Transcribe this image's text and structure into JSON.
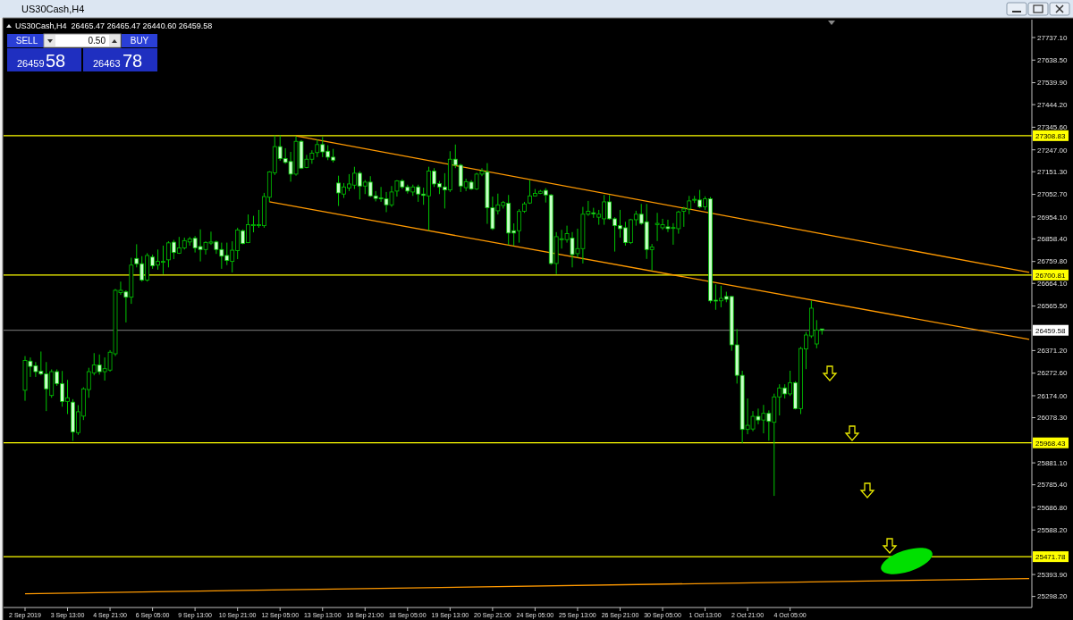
{
  "chart_data": {
    "type": "candlestick",
    "title": "US30Cash,H4",
    "subtitle": "US30Cash,H4  26465.47 26465.47 26440.60 26459.58",
    "annotations": [
      "SELL",
      "0.50",
      "BUY",
      "26459",
      "58",
      "26463",
      "78"
    ],
    "categories": [
      "2 Sep 2019",
      null,
      null,
      null,
      null,
      null,
      null,
      null,
      "3 Sep 13:00",
      null,
      null,
      null,
      null,
      null,
      null,
      null,
      "4 Sep 21:00",
      null,
      null,
      null,
      null,
      null,
      null,
      null,
      "6 Sep 05:00",
      null,
      null,
      null,
      null,
      null,
      null,
      null,
      "9 Sep 13:00",
      null,
      null,
      null,
      null,
      null,
      null,
      null,
      "10 Sep 21:00",
      null,
      null,
      null,
      null,
      null,
      null,
      null,
      "12 Sep 05:00",
      null,
      null,
      null,
      null,
      null,
      null,
      null,
      "13 Sep 13:00",
      null,
      null,
      null,
      null,
      null,
      null,
      null,
      "16 Sep 21:00",
      null,
      null,
      null,
      null,
      null,
      null,
      null,
      "18 Sep 05:00",
      null,
      null,
      null,
      null,
      null,
      null,
      null,
      "19 Sep 13:00",
      null,
      null,
      null,
      null,
      null,
      null,
      null,
      "20 Sep 21:00",
      null,
      null,
      null,
      null,
      null,
      null,
      null,
      "24 Sep 05:00",
      null,
      null,
      null,
      null,
      null,
      null,
      null,
      "25 Sep 13:00",
      null,
      null,
      null,
      null,
      null,
      null,
      null,
      "26 Sep 21:00",
      null,
      null,
      null,
      null,
      null,
      null,
      null,
      "30 Sep 05:00",
      null,
      null,
      null,
      null,
      null,
      null,
      null,
      "1 Oct 13:00",
      null,
      null,
      null,
      null,
      null,
      null,
      null,
      "2 Oct 21:00",
      null,
      null,
      null,
      null,
      null,
      null,
      null,
      "4 Oct 05:00",
      null,
      null,
      null,
      null,
      null,
      null,
      null,
      null,
      null,
      null,
      null,
      null,
      null,
      null,
      null,
      null,
      null,
      null,
      null,
      null,
      null,
      null,
      null,
      null,
      null,
      null,
      null,
      null,
      null,
      null,
      null,
      null,
      null,
      null,
      null,
      null,
      null,
      null,
      null,
      null,
      null,
      null,
      null,
      null,
      null
    ],
    "ohlc": [
      [
        26198,
        26347,
        26152,
        26328
      ],
      [
        26325,
        26341,
        26256,
        26302
      ],
      [
        26305,
        26321,
        26256,
        26279
      ],
      [
        26281,
        26367,
        26263,
        26269
      ],
      [
        26269,
        26321,
        26107,
        26204
      ],
      [
        26175,
        26289,
        26165,
        26279
      ],
      [
        26279,
        26289,
        26217,
        26227
      ],
      [
        26227,
        26282,
        26126,
        26149
      ],
      [
        26149,
        26243,
        26094,
        26165
      ],
      [
        26146,
        26159,
        25977,
        26016
      ],
      [
        26013,
        26133,
        26003,
        26104
      ],
      [
        26085,
        26211,
        26068,
        26204
      ],
      [
        26201,
        26296,
        26165,
        26279
      ],
      [
        26273,
        26360,
        26263,
        26308
      ],
      [
        26308,
        26354,
        26266,
        26279
      ],
      [
        26279,
        26341,
        26240,
        26292
      ],
      [
        26286,
        26373,
        26279,
        26364
      ],
      [
        26357,
        26640,
        26347,
        26634
      ],
      [
        26624,
        26672,
        26614,
        26634
      ],
      [
        26627,
        26634,
        26494,
        26604
      ],
      [
        26604,
        26776,
        26575,
        26744
      ],
      [
        26773,
        26835,
        26734,
        26750
      ],
      [
        26750,
        26783,
        26672,
        26679
      ],
      [
        26679,
        26796,
        26672,
        26786
      ],
      [
        26779,
        26790,
        26728,
        26741
      ],
      [
        26744,
        26812,
        26724,
        26760
      ],
      [
        26757,
        26829,
        26705,
        26760
      ],
      [
        26767,
        26848,
        26734,
        26841
      ],
      [
        26844,
        26854,
        26770,
        26799
      ],
      [
        26796,
        26867,
        26793,
        26819
      ],
      [
        26819,
        26864,
        26812,
        26851
      ],
      [
        26845,
        26867,
        26829,
        26858
      ],
      [
        26861,
        26871,
        26799,
        26819
      ],
      [
        26825,
        26900,
        26760,
        26812
      ],
      [
        26812,
        26848,
        26790,
        26843
      ],
      [
        26840,
        26890,
        26832,
        26845
      ],
      [
        26845,
        26851,
        26793,
        26812
      ],
      [
        26812,
        26842,
        26728,
        26783
      ],
      [
        26786,
        26842,
        26744,
        26764
      ],
      [
        26760,
        26848,
        26712,
        26809
      ],
      [
        26807,
        26907,
        26770,
        26897
      ],
      [
        26894,
        26900,
        26835,
        26838
      ],
      [
        26842,
        26965,
        26840,
        26920
      ],
      [
        26916,
        26959,
        26887,
        26920
      ],
      [
        26916,
        26985,
        26907,
        26920
      ],
      [
        26916,
        27059,
        26907,
        27043
      ],
      [
        27040,
        27154,
        27020,
        27150
      ],
      [
        27147,
        27310,
        27137,
        27261
      ],
      [
        27261,
        27310,
        27199,
        27209
      ],
      [
        27209,
        27254,
        27186,
        27192
      ],
      [
        27196,
        27238,
        27108,
        27141
      ],
      [
        27141,
        27306,
        27134,
        27284
      ],
      [
        27284,
        27290,
        27163,
        27167
      ],
      [
        27170,
        27225,
        27167,
        27206
      ],
      [
        27206,
        27245,
        27186,
        27232
      ],
      [
        27235,
        27293,
        27215,
        27270
      ],
      [
        27270,
        27303,
        27215,
        27238
      ],
      [
        27241,
        27267,
        27202,
        27215
      ],
      [
        27215,
        27251,
        27192,
        27202
      ],
      [
        27102,
        27134,
        27002,
        27059
      ],
      [
        27054,
        27102,
        27037,
        27085
      ],
      [
        27080,
        27141,
        27067,
        27098
      ],
      [
        27093,
        27173,
        27076,
        27145
      ],
      [
        27145,
        27154,
        27030,
        27089
      ],
      [
        27089,
        27115,
        27054,
        27106
      ],
      [
        27106,
        27132,
        27041,
        27046
      ],
      [
        27046,
        27067,
        27022,
        27035
      ],
      [
        27037,
        27085,
        27020,
        27034
      ],
      [
        27033,
        27063,
        26975,
        27007
      ],
      [
        27007,
        27089,
        26998,
        27063
      ],
      [
        27067,
        27115,
        27043,
        27111
      ],
      [
        27111,
        27119,
        27076,
        27085
      ],
      [
        27085,
        27095,
        27056,
        27067
      ],
      [
        27063,
        27095,
        27046,
        27085
      ],
      [
        27085,
        27095,
        27020,
        27054
      ],
      [
        27054,
        27082,
        27007,
        27048
      ],
      [
        27046,
        27173,
        26894,
        27154
      ],
      [
        27154,
        27167,
        27085,
        27098
      ],
      [
        27100,
        27111,
        27054,
        27085
      ],
      [
        27085,
        27145,
        26991,
        27072
      ],
      [
        27072,
        27241,
        27063,
        27206
      ],
      [
        27206,
        27270,
        27167,
        27180
      ],
      [
        27180,
        27186,
        27063,
        27089
      ],
      [
        27082,
        27121,
        27067,
        27108
      ],
      [
        27106,
        27115,
        27072,
        27076
      ],
      [
        27076,
        27147,
        27072,
        27141
      ],
      [
        27141,
        27167,
        27132,
        27154
      ],
      [
        27150,
        27189,
        26924,
        26994
      ],
      [
        26994,
        27043,
        26897,
        26903
      ],
      [
        26981,
        27056,
        26965,
        27007
      ],
      [
        27004,
        27024,
        26991,
        27017
      ],
      [
        27014,
        27050,
        26832,
        26884
      ],
      [
        26894,
        26926,
        26829,
        26884
      ],
      [
        26894,
        26988,
        26842,
        26978
      ],
      [
        26979,
        27020,
        26972,
        27011
      ],
      [
        27015,
        27115,
        27011,
        27046
      ],
      [
        27046,
        27076,
        27043,
        27057
      ],
      [
        27057,
        27072,
        27054,
        27066
      ],
      [
        27070,
        27080,
        27017,
        27050
      ],
      [
        27050,
        27054,
        26745,
        26751
      ],
      [
        26751,
        26888,
        26705,
        26868
      ],
      [
        26856,
        26898,
        26816,
        26859
      ],
      [
        26855,
        26916,
        26842,
        26881
      ],
      [
        26862,
        26888,
        26734,
        26790
      ],
      [
        26794,
        26903,
        26777,
        26816
      ],
      [
        26816,
        26998,
        26751,
        26966
      ],
      [
        26966,
        27024,
        26959,
        26979
      ],
      [
        26972,
        26994,
        26950,
        26968
      ],
      [
        26953,
        26985,
        26920,
        26966
      ],
      [
        26946,
        27050,
        26920,
        27020
      ],
      [
        27020,
        27050,
        26942,
        26946
      ],
      [
        26946,
        26953,
        26803,
        26916
      ],
      [
        26916,
        26985,
        26864,
        26903
      ],
      [
        26907,
        26933,
        26829,
        26842
      ],
      [
        26842,
        26946,
        26836,
        26942
      ],
      [
        26942,
        26981,
        26916,
        26966
      ],
      [
        26966,
        27011,
        26920,
        26926
      ],
      [
        26933,
        27011,
        26771,
        26812
      ],
      [
        26812,
        26836,
        26721,
        26823
      ],
      [
        26921,
        26972,
        26849,
        26926
      ],
      [
        26907,
        26946,
        26898,
        26920
      ],
      [
        26911,
        26942,
        26888,
        26903
      ],
      [
        26906,
        26927,
        26833,
        26908
      ],
      [
        26903,
        26981,
        26881,
        26976
      ],
      [
        26979,
        26998,
        26911,
        26989
      ],
      [
        26989,
        27046,
        26966,
        27024
      ],
      [
        27028,
        27046,
        27015,
        27031
      ],
      [
        27028,
        27072,
        26992,
        26998
      ],
      [
        26998,
        27044,
        26985,
        27033
      ],
      [
        27033,
        27041,
        26578,
        26588
      ],
      [
        26591,
        26660,
        26549,
        26587
      ],
      [
        26588,
        26654,
        26560,
        26599
      ],
      [
        26607,
        26628,
        26582,
        26595
      ],
      [
        26607,
        26609,
        26370,
        26396
      ],
      [
        26396,
        26465,
        26227,
        26263
      ],
      [
        26263,
        26283,
        25967,
        26027
      ],
      [
        26027,
        26162,
        26006,
        26045
      ],
      [
        26029,
        26107,
        26019,
        26084
      ],
      [
        26084,
        26118,
        26049,
        26068
      ],
      [
        26068,
        26134,
        26010,
        26097
      ],
      [
        26097,
        26110,
        25978,
        26062
      ],
      [
        26058,
        26183,
        25737,
        26169
      ],
      [
        26169,
        26224,
        26088,
        26208
      ],
      [
        26208,
        26224,
        26162,
        26182
      ],
      [
        26182,
        26283,
        26173,
        26231
      ],
      [
        26231,
        26237,
        26114,
        26118
      ],
      [
        26118,
        26387,
        26094,
        26380
      ],
      [
        26378,
        26452,
        26290,
        26439
      ],
      [
        26435,
        26588,
        26426,
        26556
      ],
      [
        26400,
        26504,
        26381,
        26461
      ],
      [
        26465.47,
        26465.47,
        26440.6,
        26459.58
      ],
      null,
      null,
      null,
      null,
      null,
      null,
      null,
      null,
      null,
      null,
      null,
      null,
      null,
      null,
      null,
      null,
      null,
      null,
      null,
      null,
      null,
      null,
      null,
      null,
      null,
      null,
      null,
      null,
      null,
      null,
      null,
      null,
      null,
      null,
      null,
      null,
      null,
      null,
      null
    ],
    "series": [
      {
        "type": "line",
        "color": "#ff9900",
        "values": [
          null,
          null,
          null,
          null,
          null,
          null,
          null,
          null,
          null,
          null,
          null,
          null,
          null,
          null,
          null,
          null,
          null,
          null,
          null,
          null,
          null,
          null,
          null,
          null,
          null,
          null,
          null,
          null,
          null,
          null,
          null,
          null,
          null,
          null,
          null,
          null,
          null,
          null,
          null,
          null,
          null,
          null,
          null,
          null,
          null,
          null,
          null,
          null,
          null,
          null,
          null,
          27308,
          null,
          null,
          null,
          null,
          null,
          null,
          null,
          null,
          null,
          null,
          null,
          null,
          null,
          null,
          null,
          null,
          null,
          null,
          null,
          null,
          null,
          null,
          null,
          null,
          null,
          null,
          null,
          null,
          null,
          null,
          null,
          null,
          null,
          null,
          null,
          null,
          null,
          null,
          null,
          null,
          null,
          null,
          null,
          null,
          null,
          null,
          null,
          null,
          null,
          null,
          null,
          null,
          null,
          null,
          null,
          null,
          null,
          null,
          null,
          null,
          null,
          null,
          null,
          null,
          null,
          null,
          null,
          null,
          null,
          null,
          null,
          null,
          null,
          null,
          null,
          null,
          null,
          null,
          null,
          null,
          null,
          null,
          null,
          null,
          null,
          null,
          null,
          null,
          null,
          null,
          null,
          null,
          null,
          null,
          null,
          null,
          null,
          null,
          null,
          null,
          null,
          null,
          null,
          null,
          null,
          null,
          null,
          null,
          null,
          null,
          null,
          null,
          null,
          null,
          null,
          null,
          null,
          null,
          null,
          null,
          null,
          null,
          null,
          null,
          null,
          null,
          null,
          null,
          null,
          null,
          null,
          null,
          null,
          null,
          null,
          null,
          null,
          26712
        ]
      },
      {
        "type": "line",
        "color": "#ff9900",
        "values": [
          null,
          null,
          null,
          null,
          null,
          null,
          null,
          null,
          null,
          null,
          null,
          null,
          null,
          null,
          null,
          null,
          null,
          null,
          null,
          null,
          null,
          null,
          null,
          null,
          null,
          null,
          null,
          null,
          null,
          null,
          null,
          null,
          null,
          null,
          null,
          null,
          null,
          null,
          null,
          null,
          null,
          null,
          null,
          null,
          null,
          null,
          27020,
          null,
          null,
          null,
          null,
          null,
          null,
          null,
          null,
          null,
          null,
          null,
          null,
          null,
          null,
          null,
          null,
          null,
          null,
          null,
          null,
          null,
          null,
          null,
          null,
          null,
          null,
          null,
          null,
          null,
          null,
          null,
          null,
          null,
          null,
          null,
          null,
          null,
          null,
          null,
          null,
          null,
          null,
          null,
          null,
          null,
          null,
          null,
          null,
          null,
          null,
          null,
          null,
          null,
          null,
          null,
          null,
          null,
          null,
          null,
          null,
          null,
          null,
          null,
          null,
          null,
          null,
          null,
          null,
          null,
          null,
          null,
          null,
          null,
          null,
          null,
          null,
          null,
          null,
          null,
          null,
          null,
          null,
          null,
          null,
          null,
          null,
          null,
          null,
          null,
          null,
          null,
          null,
          null,
          null,
          null,
          null,
          null,
          null,
          null,
          null,
          null,
          null,
          null,
          null,
          null,
          null,
          null,
          null,
          null,
          null,
          null,
          null,
          null,
          null,
          null,
          null,
          null,
          null,
          null,
          null,
          null,
          null,
          null,
          null,
          null,
          null,
          null,
          null,
          null,
          null,
          null,
          null,
          null,
          null,
          null,
          null,
          null,
          null,
          null,
          null,
          null,
          null,
          26420
        ]
      },
      {
        "type": "line",
        "color": "#ff9900",
        "values": [
          25310,
          null,
          null,
          null,
          null,
          null,
          null,
          null,
          null,
          null,
          null,
          null,
          null,
          null,
          null,
          null,
          null,
          null,
          null,
          null,
          null,
          null,
          null,
          null,
          null,
          null,
          null,
          null,
          null,
          null,
          null,
          null,
          null,
          null,
          null,
          null,
          null,
          null,
          null,
          null,
          null,
          null,
          null,
          null,
          null,
          null,
          null,
          null,
          null,
          null,
          null,
          null,
          null,
          null,
          null,
          null,
          null,
          null,
          null,
          null,
          null,
          null,
          null,
          null,
          null,
          null,
          null,
          null,
          null,
          null,
          null,
          null,
          null,
          null,
          null,
          null,
          null,
          null,
          null,
          null,
          null,
          null,
          null,
          null,
          null,
          null,
          null,
          null,
          null,
          null,
          null,
          null,
          null,
          null,
          null,
          null,
          null,
          null,
          null,
          null,
          null,
          null,
          null,
          null,
          null,
          null,
          null,
          null,
          null,
          null,
          null,
          null,
          null,
          null,
          null,
          null,
          null,
          null,
          null,
          null,
          null,
          null,
          null,
          null,
          null,
          null,
          null,
          null,
          null,
          null,
          null,
          null,
          null,
          null,
          null,
          null,
          null,
          null,
          null,
          null,
          null,
          null,
          null,
          null,
          null,
          null,
          null,
          null,
          null,
          null,
          null,
          null,
          null,
          null,
          null,
          null,
          null,
          null,
          null,
          null,
          null,
          null,
          null,
          null,
          null,
          null,
          null,
          null,
          null,
          null,
          null,
          null,
          null,
          null,
          null,
          null,
          null,
          null,
          null,
          null,
          null,
          null,
          null,
          null,
          null,
          null,
          null,
          null,
          null,
          25376
        ]
      }
    ],
    "ylim": [
      25250,
      27815
    ],
    "yticks": [
      {
        "value": 27737.1,
        "label": "27737.10"
      },
      {
        "value": 27638.5,
        "label": "27638.50"
      },
      {
        "value": 27539.9,
        "label": "27539.90"
      },
      {
        "value": 27444.2,
        "label": "27444.20"
      },
      {
        "value": 27345.6,
        "label": "27345.60"
      },
      {
        "value": 27247,
        "label": "27247.00"
      },
      {
        "value": 27151.3,
        "label": "27151.30"
      },
      {
        "value": 27052.7,
        "label": "27052.70"
      },
      {
        "value": 26954.1,
        "label": "26954.10"
      },
      {
        "value": 26858.4,
        "label": "26858.40"
      },
      {
        "value": 26759.8,
        "label": "26759.80"
      },
      {
        "value": 26664.1,
        "label": "26664.10"
      },
      {
        "value": 26565.5,
        "label": "26565.50"
      },
      {
        "value": 26371.2,
        "label": "26371.20"
      },
      {
        "value": 26272.6,
        "label": "26272.60"
      },
      {
        "value": 26174,
        "label": "26174.00"
      },
      {
        "value": 26078.3,
        "label": "26078.30"
      },
      {
        "value": 25881.1,
        "label": "25881.10"
      },
      {
        "value": 25785.4,
        "label": "25785.40"
      },
      {
        "value": 25686.8,
        "label": "25686.80"
      },
      {
        "value": 25588.2,
        "label": "25588.20"
      },
      {
        "value": 25393.9,
        "label": "25393.90"
      },
      {
        "value": 25298.2,
        "label": "25298.20"
      }
    ],
    "ref_lines": [
      {
        "axis": "y",
        "value": 27308.83,
        "label": "27308.83",
        "color": "#ffff00"
      },
      {
        "axis": "y",
        "value": 26700.81,
        "label": "26700.81",
        "color": "#ffff00"
      },
      {
        "axis": "y",
        "value": 26459.58,
        "label": "26459.58",
        "color": "#808080"
      },
      {
        "axis": "y",
        "value": 25968.43,
        "label": "25968.43",
        "color": "#ffff00"
      },
      {
        "axis": "y",
        "value": 25471.78,
        "label": "25471.78",
        "color": "#ffff00"
      }
    ]
  }
}
